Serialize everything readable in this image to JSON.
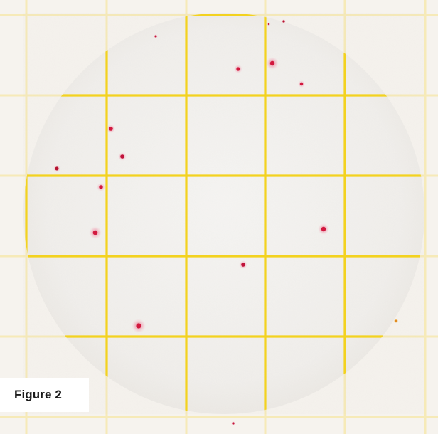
{
  "figure": {
    "label": "Figure 2",
    "description_kind": "membrane filter with grid and colonies"
  },
  "colors": {
    "background": "#f6f3ee",
    "membrane": "#f2f1ee",
    "grid_line": "#f3d21f",
    "grid_line_faint": "#f6e7a6",
    "colony": "#d2183e",
    "colony_halo": "#f2a3b5",
    "label_bg": "#ffffff",
    "label_text": "#1a1a1a"
  },
  "colonies": {
    "count": 18
  }
}
